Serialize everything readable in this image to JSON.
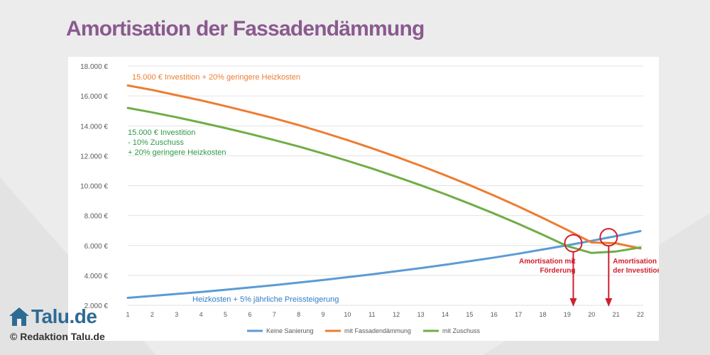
{
  "page_title": "Amortisation der Fassadendämmung",
  "logo_text": "Talu.de",
  "credit": "© Redaktion Talu.de",
  "chart_data": {
    "type": "line",
    "x": [
      1,
      2,
      3,
      4,
      5,
      6,
      7,
      8,
      9,
      10,
      11,
      12,
      13,
      14,
      15,
      16,
      17,
      18,
      19,
      20,
      21,
      22
    ],
    "ylim": [
      2000,
      18000
    ],
    "y_ticks": [
      2000,
      4000,
      6000,
      8000,
      10000,
      12000,
      14000,
      16000,
      18000
    ],
    "y_tick_labels": [
      "2.000 €",
      "4.000 €",
      "6.000 €",
      "8.000 €",
      "10.000 €",
      "12.000 €",
      "14.000 €",
      "16.000 €",
      "18.000 €"
    ],
    "grid": true,
    "legend_position": "bottom",
    "series": [
      {
        "name": "Keine Sanierung",
        "color": "#5b9bd5",
        "values": [
          2500,
          2630,
          2760,
          2890,
          3040,
          3190,
          3350,
          3520,
          3690,
          3880,
          4070,
          4280,
          4490,
          4710,
          4950,
          5190,
          5450,
          5730,
          6010,
          6310,
          6630,
          6960
        ]
      },
      {
        "name": "mit Fassadendämmung",
        "color": "#ed7d31",
        "values": [
          16700,
          16400,
          16050,
          15700,
          15320,
          14920,
          14500,
          14050,
          13560,
          13050,
          12500,
          11930,
          11330,
          10700,
          10040,
          9340,
          8610,
          7840,
          7040,
          6200,
          6150,
          5800
        ]
      },
      {
        "name": "mit Zuschuss",
        "color": "#70ad47",
        "values": [
          15200,
          14900,
          14570,
          14220,
          13850,
          13460,
          13050,
          12620,
          12150,
          11660,
          11150,
          10600,
          10030,
          9430,
          8800,
          8140,
          7450,
          6720,
          5960,
          5500,
          5600,
          5870
        ]
      }
    ],
    "annotations": [
      {
        "id": "orange",
        "text": "15.000 € Investition + 20% geringere Heizkosten",
        "color": "#ed7d31"
      },
      {
        "id": "green",
        "lines": [
          "15.000 € Investition",
          "- 10% Zuschuss",
          "+ 20% geringere Heizkosten"
        ],
        "color": "#2e9a48"
      },
      {
        "id": "blue",
        "text": "Heizkosten + 5% jährliche Preissteigerung",
        "color": "#2e7ec2"
      },
      {
        "id": "amort-foerderung",
        "lines": [
          "Amortisation mit",
          "Förderung"
        ],
        "x": 19.25,
        "y": 6150,
        "color": "#d0202e"
      },
      {
        "id": "amort-investition",
        "lines": [
          "Amortisation",
          "der Investition"
        ],
        "x": 20.7,
        "y": 6550,
        "color": "#d0202e"
      }
    ]
  }
}
